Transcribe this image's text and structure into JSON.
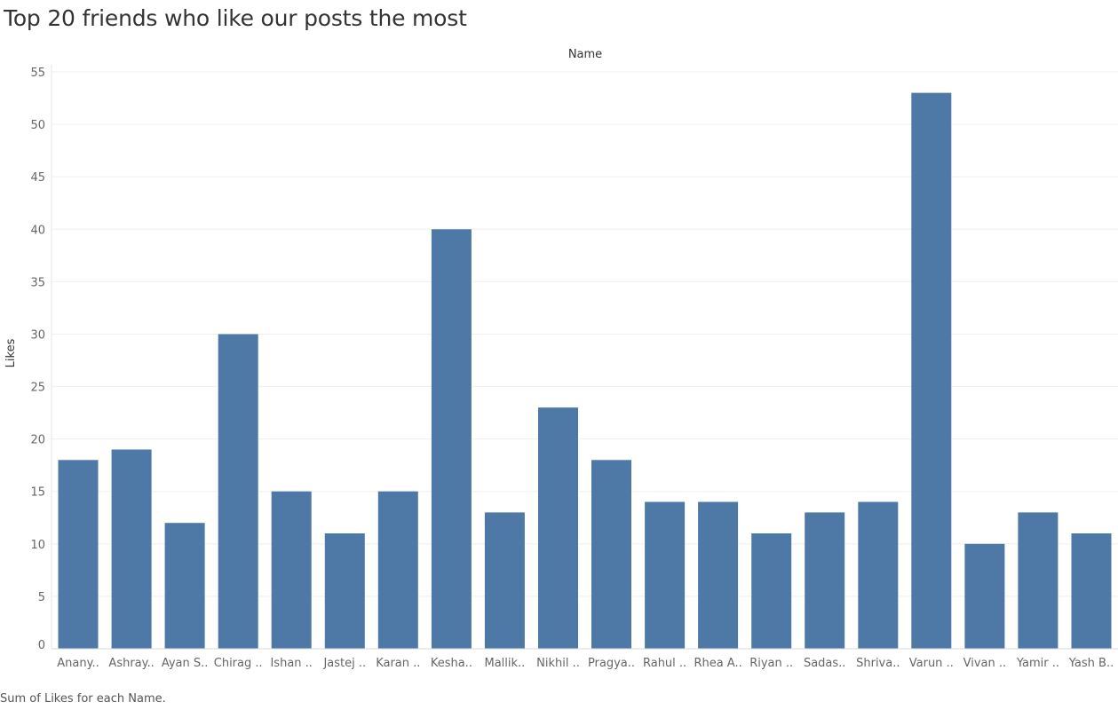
{
  "title": "Top 20 friends who like our posts the most",
  "footer": "Sum of Likes for each Name.",
  "chart_data": {
    "type": "bar",
    "column_header": "Name",
    "ylabel": "Likes",
    "xlabel": "",
    "ylim": [
      0,
      55
    ],
    "yticks": [
      0,
      5,
      10,
      15,
      20,
      25,
      30,
      35,
      40,
      45,
      50,
      55
    ],
    "grid": true,
    "bar_color": "#4e79a7",
    "categories": [
      "Anany..",
      "Ashray..",
      "Ayan S..",
      "Chirag ..",
      "Ishan ..",
      "Jastej ..",
      "Karan ..",
      "Kesha..",
      "Mallik..",
      "Nikhil ..",
      "Pragya..",
      "Rahul ..",
      "Rhea A..",
      "Riyan ..",
      "Sadas..",
      "Shriva..",
      "Varun ..",
      "Vivan ..",
      "Yamir ..",
      "Yash B.."
    ],
    "values": [
      18,
      19,
      12,
      30,
      15,
      11,
      15,
      40,
      13,
      23,
      18,
      14,
      14,
      11,
      13,
      14,
      53,
      10,
      13,
      11
    ]
  }
}
